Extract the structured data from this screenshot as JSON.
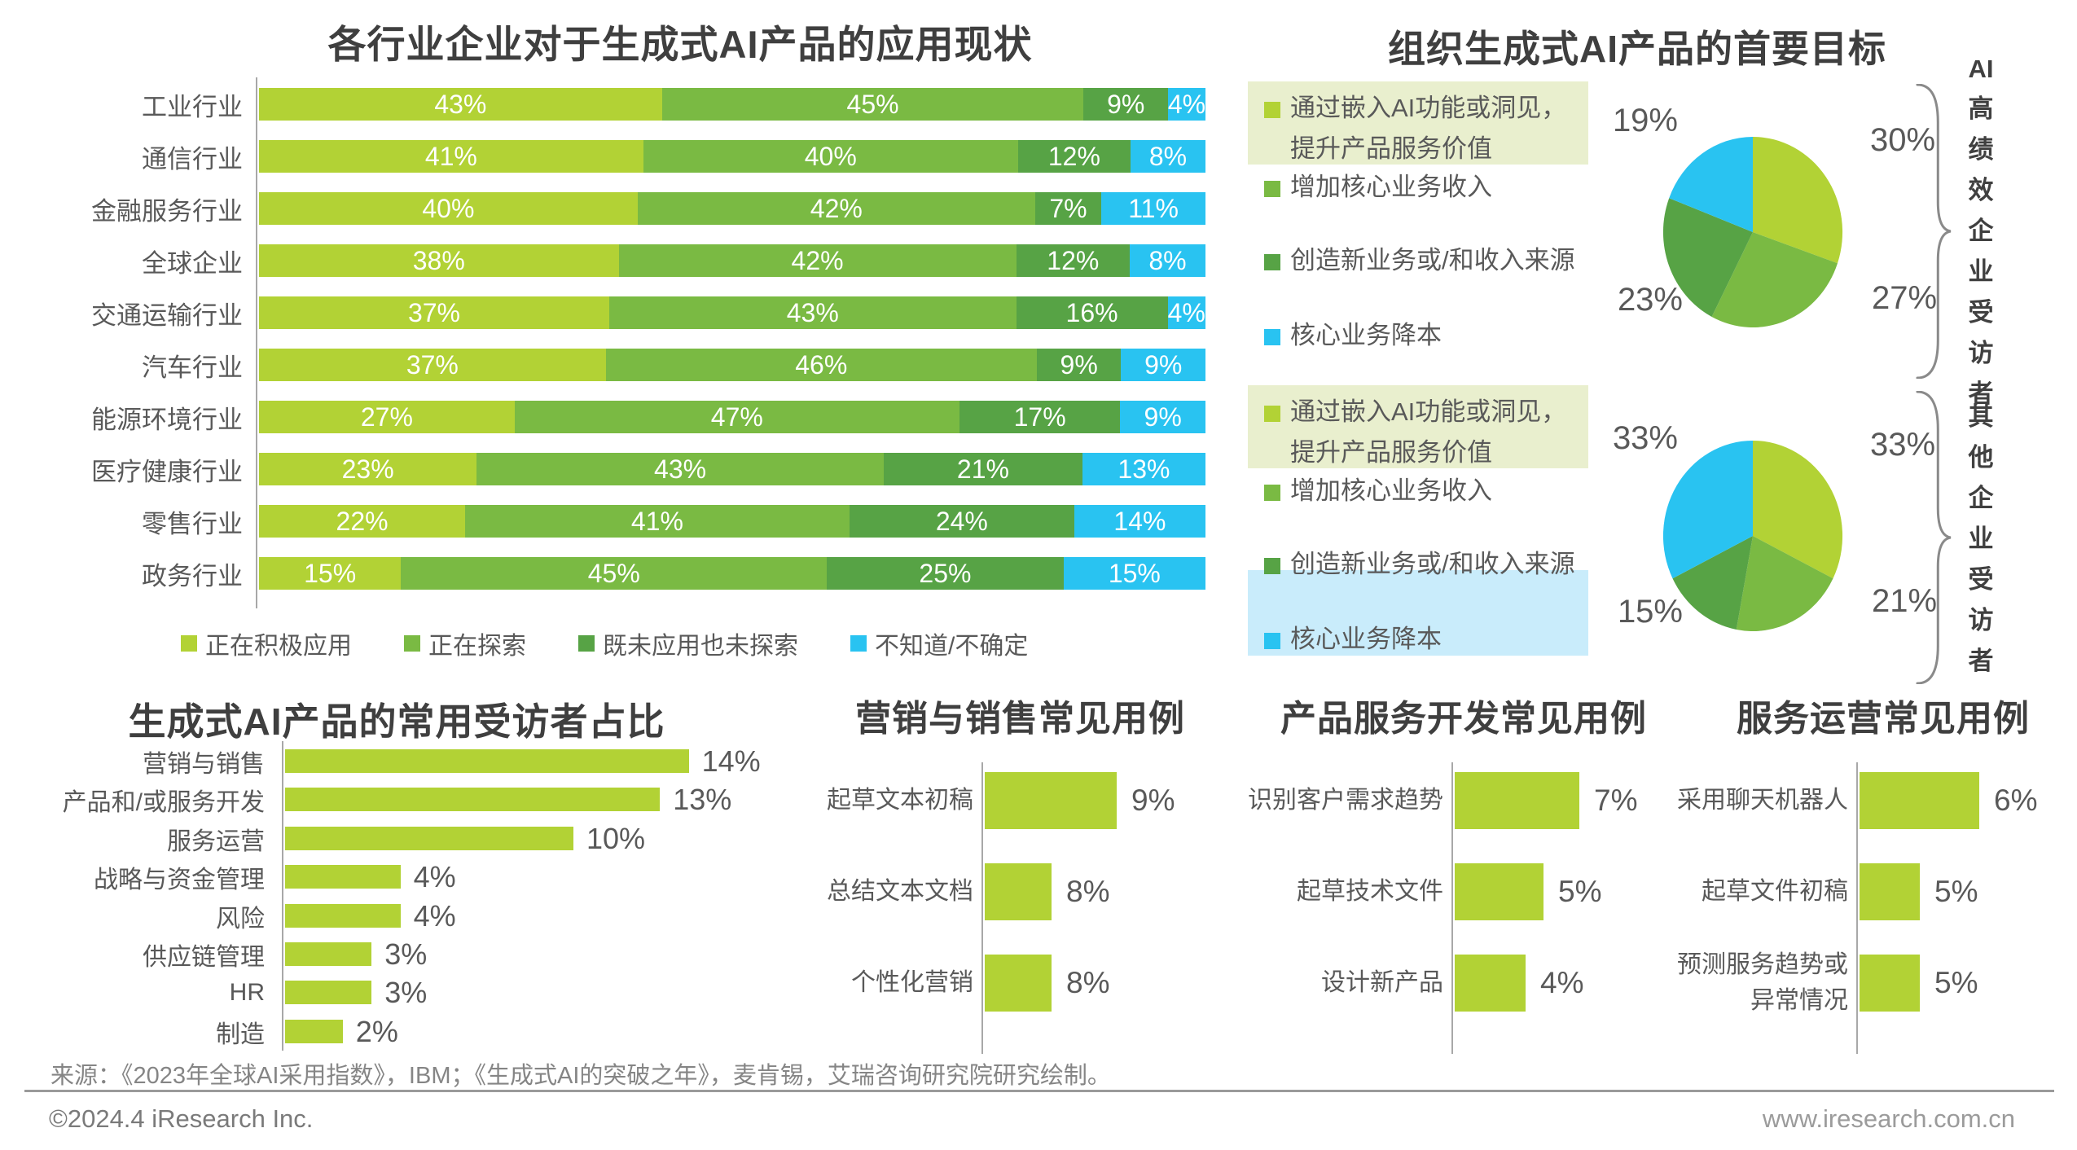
{
  "colors": {
    "green_light": "#b2d235",
    "green_mid": "#7aba43",
    "green_dark": "#57a345",
    "cyan": "#29c3f1",
    "green_pale": "#e9efce",
    "cyan_pale": "#c9ecfb",
    "title_text": "#3f3f3f",
    "label_text": "#595959",
    "value_on_bar": "#ffffff",
    "axis": "#a8a8a8",
    "brace": "#8a8a8a"
  },
  "footer": {
    "source": "来源：《2023年全球AI采用指数》，IBM；《生成式AI的突破之年》，麦肯锡，艾瑞咨询研究院研究绘制。",
    "copyright": "©2024.4 iResearch Inc.",
    "website": "www.iresearch.com.cn"
  },
  "chart_data": [
    {
      "id": "industry-adoption",
      "type": "bar",
      "orientation": "horizontal-stacked",
      "title": "各行业企业对于生成式AI产品的应用现状",
      "categories": [
        "工业行业",
        "通信行业",
        "金融服务行业",
        "全球企业",
        "交通运输行业",
        "汽车行业",
        "能源环境行业",
        "医疗健康行业",
        "零售行业",
        "政务行业"
      ],
      "series": [
        {
          "name": "正在积极应用",
          "color_key": "green_light",
          "values": [
            43,
            41,
            40,
            38,
            37,
            37,
            27,
            23,
            22,
            15
          ]
        },
        {
          "name": "正在探索",
          "color_key": "green_mid",
          "values": [
            45,
            40,
            42,
            42,
            43,
            46,
            47,
            43,
            41,
            45
          ]
        },
        {
          "name": "既未应用也未探索",
          "color_key": "green_dark",
          "values": [
            9,
            12,
            7,
            12,
            16,
            9,
            17,
            21,
            24,
            25
          ]
        },
        {
          "name": "不知道/不确定",
          "color_key": "cyan",
          "values": [
            4,
            8,
            11,
            8,
            4,
            9,
            9,
            13,
            14,
            15
          ]
        }
      ],
      "value_suffix": "%",
      "xlim": [
        0,
        100
      ],
      "legend_position": "bottom"
    },
    {
      "id": "primary-goals",
      "type": "pie",
      "title": "组织生成式AI产品的首要目标",
      "legend": [
        {
          "label": "通过嵌入AI功能或洞见，\n提升产品服务价值",
          "color_key": "green_light"
        },
        {
          "label": "增加核心业务收入",
          "color_key": "green_mid"
        },
        {
          "label": "创造新业务或/和收入来源",
          "color_key": "green_dark"
        },
        {
          "label": "核心业务降本",
          "color_key": "cyan"
        }
      ],
      "pies": [
        {
          "group": "AI高绩效企业受访者",
          "values": [
            30,
            27,
            23,
            19
          ],
          "highlighted_legend": [
            0
          ]
        },
        {
          "group": "其他企业受访者",
          "values": [
            33,
            21,
            15,
            33
          ],
          "highlighted_legend": [
            0,
            3
          ]
        }
      ],
      "value_suffix": "%"
    },
    {
      "id": "common-users",
      "type": "bar",
      "orientation": "horizontal",
      "title": "生成式AI产品的常用受访者占比",
      "categories": [
        "营销与销售",
        "产品和/或服务开发",
        "服务运营",
        "战略与资金管理",
        "风险",
        "供应链管理",
        "HR",
        "制造"
      ],
      "values": [
        14,
        13,
        10,
        4,
        4,
        3,
        3,
        2
      ],
      "value_suffix": "%"
    },
    {
      "id": "marketing-sales-use-cases",
      "type": "bar",
      "orientation": "horizontal",
      "title": "营销与销售常见用例",
      "categories": [
        "起草文本初稿",
        "总结文本文档",
        "个性化营销"
      ],
      "values": [
        9,
        8,
        8
      ],
      "value_suffix": "%"
    },
    {
      "id": "product-service-dev-use-cases",
      "type": "bar",
      "orientation": "horizontal",
      "title": "产品服务开发常见用例",
      "categories": [
        "识别客户需求趋势",
        "起草技术文件",
        "设计新产品"
      ],
      "values": [
        7,
        5,
        4
      ],
      "value_suffix": "%"
    },
    {
      "id": "service-operations-use-cases",
      "type": "bar",
      "orientation": "horizontal",
      "title": "服务运营常见用例",
      "categories": [
        "采用聊天机器人",
        "起草文件初稿",
        "预测服务趋势或\n异常情况"
      ],
      "values": [
        6,
        5,
        5
      ],
      "value_suffix": "%"
    }
  ]
}
